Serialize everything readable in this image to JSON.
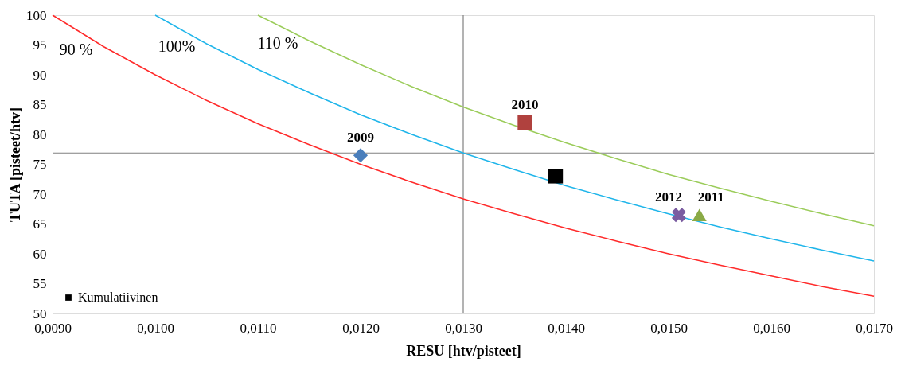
{
  "chart_data": {
    "type": "scatter",
    "xlabel": "RESU [htv/pisteet]",
    "ylabel": "TUTA [pisteet/htv]",
    "xlim": [
      0.009,
      0.017
    ],
    "ylim": [
      50,
      100
    ],
    "xticks": [
      {
        "value": 0.009,
        "label": "0,0090"
      },
      {
        "value": 0.01,
        "label": "0,0100"
      },
      {
        "value": 0.011,
        "label": "0,0110"
      },
      {
        "value": 0.012,
        "label": "0,0120"
      },
      {
        "value": 0.013,
        "label": "0,0130"
      },
      {
        "value": 0.014,
        "label": "0,0140"
      },
      {
        "value": 0.015,
        "label": "0,0150"
      },
      {
        "value": 0.016,
        "label": "0,0160"
      },
      {
        "value": 0.017,
        "label": "0,0170"
      }
    ],
    "yticks": [
      50,
      55,
      60,
      65,
      70,
      75,
      80,
      85,
      90,
      95,
      100
    ],
    "grid": false,
    "legend": "bottom left",
    "ref_lines": [
      {
        "axis": "x",
        "value": 0.013,
        "color": "#808080"
      },
      {
        "axis": "y",
        "value": 76.9,
        "color": "#808080"
      }
    ],
    "series": [
      {
        "name": "90 %",
        "type": "line",
        "color": "#ff2a2a",
        "marker": "none",
        "x": [
          0.009,
          0.0095,
          0.01,
          0.0105,
          0.011,
          0.0115,
          0.012,
          0.0125,
          0.013,
          0.0135,
          0.014,
          0.0145,
          0.015,
          0.0155,
          0.016,
          0.0165,
          0.017
        ],
        "values": [
          100,
          94.7,
          90,
          85.7,
          81.8,
          78.3,
          75,
          72,
          69.2,
          66.7,
          64.3,
          62.1,
          60,
          58.1,
          56.3,
          54.5,
          52.9
        ]
      },
      {
        "name": "100%",
        "type": "line",
        "color": "#1fb5ea",
        "marker": "none",
        "x": [
          0.01,
          0.0105,
          0.011,
          0.0115,
          0.012,
          0.0125,
          0.013,
          0.0135,
          0.014,
          0.0145,
          0.015,
          0.0155,
          0.016,
          0.0165,
          0.017
        ],
        "values": [
          100,
          95.2,
          90.9,
          87,
          83.3,
          80,
          76.9,
          74.1,
          71.4,
          69,
          66.7,
          64.5,
          62.5,
          60.6,
          58.8
        ]
      },
      {
        "name": "110 %",
        "type": "line",
        "color": "#9bcc5a",
        "marker": "none",
        "x": [
          0.011,
          0.0115,
          0.012,
          0.0125,
          0.013,
          0.0135,
          0.014,
          0.0145,
          0.015,
          0.0155,
          0.016,
          0.0165,
          0.017
        ],
        "values": [
          100,
          95.7,
          91.7,
          88,
          84.6,
          81.5,
          78.6,
          75.9,
          73.3,
          71,
          68.8,
          66.7,
          64.7
        ]
      },
      {
        "color": "#4a7ebb",
        "marker": "diamond",
        "x": [
          0.012
        ],
        "values": [
          76.5
        ]
      },
      {
        "color": "#b0413e",
        "marker": "square",
        "x": [
          0.0136
        ],
        "values": [
          82
        ]
      },
      {
        "color": "#8aaa46",
        "marker": "triangle",
        "x": [
          0.0153
        ],
        "values": [
          66.5
        ]
      },
      {
        "color": "#7a5ba0",
        "marker": "cross",
        "x": [
          0.0151
        ],
        "values": [
          66.5
        ]
      },
      {
        "name": "Kumulatiivinen",
        "color": "#000000",
        "marker": "square",
        "x": [
          0.0139
        ],
        "values": [
          73
        ]
      }
    ],
    "annotations": [
      {
        "text": "2009",
        "x": 0.012,
        "y": 76.5
      },
      {
        "text": "2010",
        "x": 0.0136,
        "y": 82
      },
      {
        "text": "2011",
        "x": 0.0153,
        "y": 66.5
      },
      {
        "text": "2012",
        "x": 0.0151,
        "y": 66.5
      }
    ]
  }
}
